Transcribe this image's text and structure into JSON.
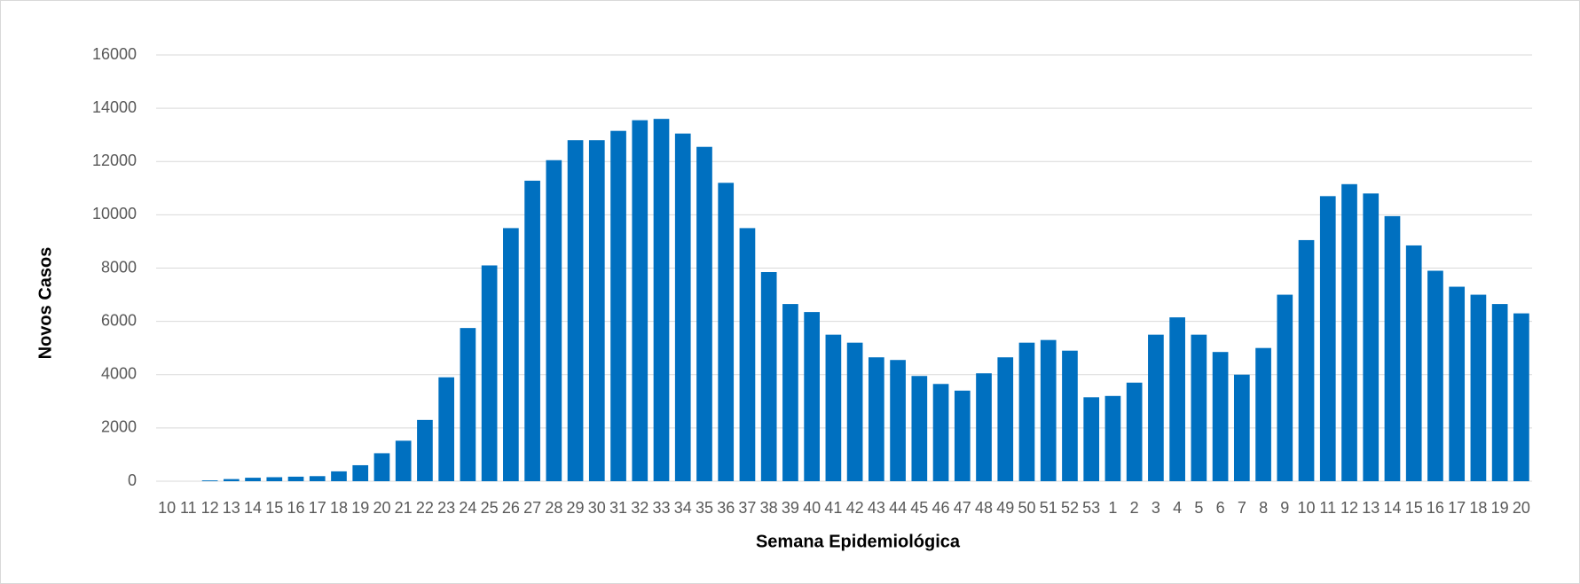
{
  "chart_data": {
    "type": "bar",
    "x_label": "Semana Epidemiológica",
    "y_label": "Novos Casos",
    "categories": [
      "10",
      "11",
      "12",
      "13",
      "14",
      "15",
      "16",
      "17",
      "18",
      "19",
      "20",
      "21",
      "22",
      "23",
      "24",
      "25",
      "26",
      "27",
      "28",
      "29",
      "30",
      "31",
      "32",
      "33",
      "34",
      "35",
      "36",
      "37",
      "38",
      "39",
      "40",
      "41",
      "42",
      "43",
      "44",
      "45",
      "46",
      "47",
      "48",
      "49",
      "50",
      "51",
      "52",
      "53",
      "1",
      "2",
      "3",
      "4",
      "5",
      "6",
      "7",
      "8",
      "9",
      "10",
      "11",
      "12",
      "13",
      "14",
      "15",
      "16",
      "17",
      "18",
      "19",
      "20"
    ],
    "values": [
      0,
      0,
      30,
      80,
      130,
      150,
      170,
      190,
      370,
      600,
      1050,
      1520,
      2300,
      3900,
      5750,
      8100,
      9500,
      11280,
      12050,
      12800,
      12800,
      13150,
      13550,
      13600,
      13050,
      12550,
      11200,
      9500,
      7850,
      6650,
      6350,
      5500,
      5200,
      4650,
      4550,
      3950,
      3650,
      3400,
      4050,
      4650,
      5200,
      5300,
      4900,
      3150,
      3200,
      3700,
      5500,
      6150,
      5500,
      4850,
      4000,
      5000,
      7000,
      9050,
      10700,
      11150,
      10800,
      9950,
      8850,
      7900,
      7300,
      7000,
      6650,
      6300
    ],
    "color": "#0070c0",
    "ylim": [
      0,
      16000
    ],
    "yticks": [
      0,
      2000,
      4000,
      6000,
      8000,
      10000,
      12000,
      14000,
      16000
    ],
    "grid": true
  }
}
